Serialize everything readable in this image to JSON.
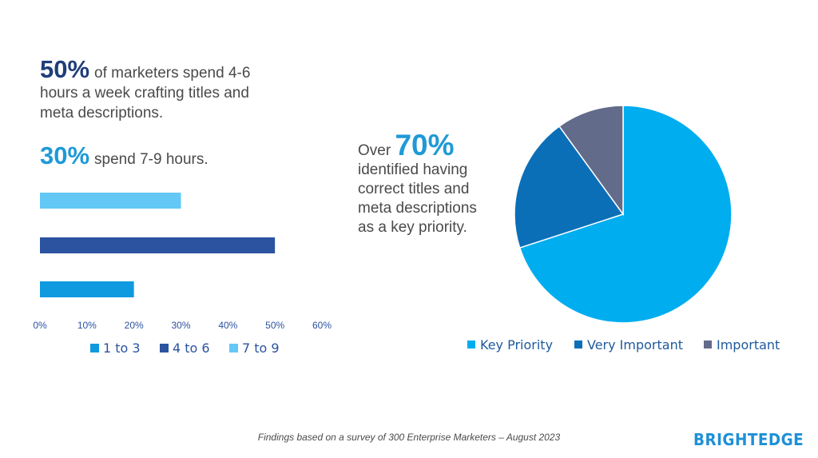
{
  "headline_stats": {
    "stat1_value": "50%",
    "stat1_text": "of marketers spend 4-6 hours a week crafting titles and meta descriptions.",
    "stat2_value": "30%",
    "stat2_text": "spend 7-9 hours.",
    "stat3_prefix": "Over",
    "stat3_value": "70%",
    "stat3_text": "identified having correct titles and meta descriptions as a key priority."
  },
  "footnote": "Findings based on a survey of 300 Enterprise Marketers – August 2023",
  "logo_text": "BRIGHTEDGE",
  "chart_data": [
    {
      "type": "bar",
      "orientation": "horizontal",
      "series": [
        {
          "name": "1 to 3",
          "value": 20,
          "color": "#0f9ae0"
        },
        {
          "name": "4 to 6",
          "value": 50,
          "color": "#2b53a0"
        },
        {
          "name": "7 to 9",
          "value": 30,
          "color": "#63c8f6"
        }
      ],
      "bar_order_top_to_bottom": [
        "7 to 9",
        "4 to 6",
        "1 to 3"
      ],
      "xlim": [
        0,
        60
      ],
      "xticks": [
        "0%",
        "10%",
        "20%",
        "30%",
        "40%",
        "50%",
        "60%"
      ],
      "tick_color": "#2b53a0",
      "legend_position": "bottom"
    },
    {
      "type": "pie",
      "slices": [
        {
          "label": "Key Priority",
          "value": 70,
          "color": "#00adef"
        },
        {
          "label": "Very Important",
          "value": 20,
          "color": "#0b6fb8"
        },
        {
          "label": "Important",
          "value": 10,
          "color": "#636b8a"
        }
      ],
      "legend_position": "bottom",
      "legend_text_color": "#1f5a9c"
    }
  ]
}
